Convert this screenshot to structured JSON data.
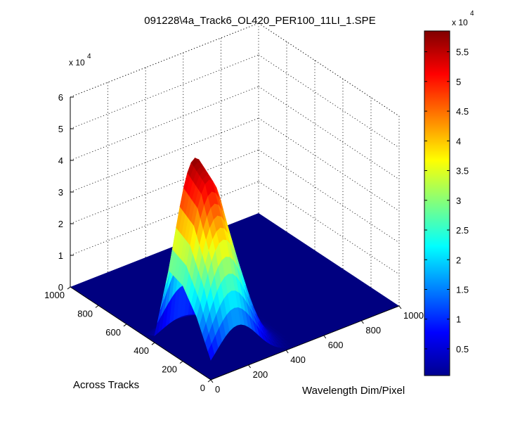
{
  "chart_data": {
    "type": "surface",
    "title": "091228\\4a_Track6_OL420_PER100_11LI_1.SPE",
    "xlabel": "Wavelength Dim/Pixel",
    "ylabel": "Across Tracks",
    "zlabel": "",
    "xlim": [
      0,
      1000
    ],
    "ylim": [
      0,
      1000
    ],
    "zlim": [
      0,
      60000
    ],
    "x_ticks": [
      "0",
      "200",
      "400",
      "600",
      "800",
      "1000"
    ],
    "y_ticks": [
      "0",
      "200",
      "400",
      "600",
      "800",
      "1000"
    ],
    "z_ticks": [
      "0",
      "1",
      "2",
      "3",
      "4",
      "5",
      "6"
    ],
    "z_multiplier": {
      "base": "x 10",
      "exponent": "4"
    },
    "grid": true,
    "colormap": "jet",
    "colorbar": {
      "ticks": [
        "0.5",
        "1",
        "1.5",
        "2",
        "2.5",
        "3",
        "3.5",
        "4",
        "4.5",
        "5",
        "5.5"
      ],
      "tick_values": [
        0.5,
        1,
        1.5,
        2,
        2.5,
        3,
        3.5,
        4,
        4.5,
        5,
        5.5
      ],
      "range": [
        0.05,
        5.85
      ],
      "multiplier": {
        "base": "x 10",
        "exponent": "4"
      }
    },
    "surface": {
      "peak": 58000,
      "floor": 0,
      "peak_x": 140,
      "x_spread_sigma": 110,
      "y_rows_peak_value": [
        {
          "y": 0,
          "peak": 14000
        },
        {
          "y": 100,
          "peak": 38000
        },
        {
          "y": 200,
          "peak": 54000
        },
        {
          "y": 300,
          "peak": 58000
        },
        {
          "y": 400,
          "peak": 5000
        },
        {
          "y": 500,
          "peak": 0
        },
        {
          "y": 1000,
          "peak": 0
        }
      ]
    }
  }
}
